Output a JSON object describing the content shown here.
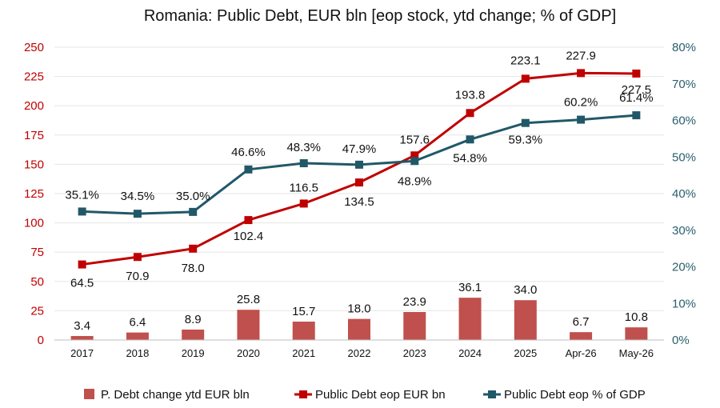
{
  "chart_data": {
    "type": "bar+line",
    "title": "Romania: Public Debt, EUR bln [eop stock, ytd change; % of GDP]",
    "categories": [
      "2017",
      "2018",
      "2019",
      "2020",
      "2021",
      "2022",
      "2023",
      "2024",
      "2025",
      "Apr-26",
      "May-26"
    ],
    "y_left": {
      "min": 0,
      "max": 250,
      "ticks": [
        "0",
        "25",
        "50",
        "75",
        "100",
        "125",
        "150",
        "175",
        "200",
        "225",
        "250"
      ],
      "color": "#c00000"
    },
    "y_right": {
      "min": 0,
      "max": 80,
      "ticks": [
        "0%",
        "10%",
        "20%",
        "30%",
        "40%",
        "50%",
        "60%",
        "70%",
        "80%"
      ],
      "color": "#2a5f6e"
    },
    "grid": true,
    "legend_position": "bottom",
    "series": [
      {
        "name": "P. Debt change ytd EUR bln",
        "kind": "bar",
        "axis": "left",
        "color": "#c0504d",
        "values": [
          3.4,
          6.4,
          8.9,
          25.8,
          15.7,
          18.0,
          23.9,
          36.1,
          34.0,
          6.7,
          10.8
        ],
        "labels": [
          "3.4",
          "6.4",
          "8.9",
          "25.8",
          "15.7",
          "18.0",
          "23.9",
          "36.1",
          "34.0",
          "6.7",
          "10.8"
        ]
      },
      {
        "name": "Public Debt eop EUR bn",
        "kind": "line",
        "axis": "left",
        "color": "#c00000",
        "values": [
          64.5,
          70.9,
          78.0,
          102.4,
          116.5,
          134.5,
          157.6,
          193.8,
          223.1,
          227.9,
          227.5
        ],
        "labels": [
          "64.5",
          "70.9",
          "78.0",
          "102.4",
          "116.5",
          "134.5",
          "157.6",
          "193.8",
          "223.1",
          "227.9",
          "227.5"
        ]
      },
      {
        "name": "Public Debt eop % of GDP",
        "kind": "line",
        "axis": "right",
        "color": "#215868",
        "values": [
          35.1,
          34.5,
          35.0,
          46.6,
          48.3,
          47.9,
          48.9,
          54.8,
          59.3,
          60.2,
          61.4
        ],
        "labels": [
          "35.1%",
          "34.5%",
          "35.0%",
          "46.6%",
          "48.3%",
          "47.9%",
          "48.9%",
          "54.8%",
          "59.3%",
          "60.2%",
          "61.4%"
        ]
      }
    ]
  }
}
